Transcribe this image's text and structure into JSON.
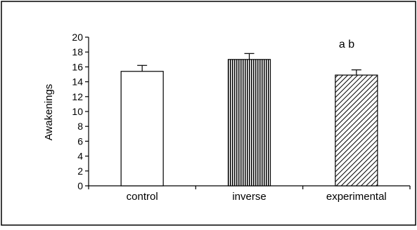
{
  "chart_data": {
    "type": "bar",
    "title": "",
    "xlabel": "",
    "ylabel": "Awakenings",
    "ylim": [
      0,
      20
    ],
    "yticks": [
      0,
      2,
      4,
      6,
      8,
      10,
      12,
      14,
      16,
      18,
      20
    ],
    "categories": [
      "control",
      "inverse",
      "experimental"
    ],
    "values": [
      15.4,
      17.0,
      14.9
    ],
    "errors": [
      0.8,
      0.8,
      0.7
    ],
    "bar_fills": [
      "solid-white",
      "vertical-lines",
      "diagonal-lines"
    ],
    "annotation": "a b",
    "grid": false,
    "legend": "none"
  }
}
